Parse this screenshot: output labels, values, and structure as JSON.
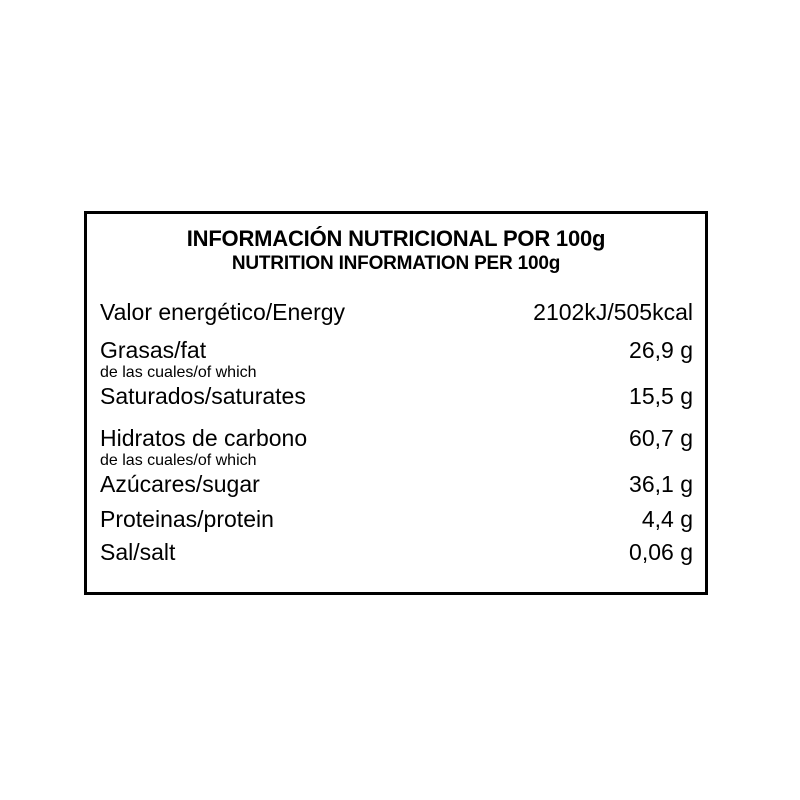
{
  "label": {
    "title_es": "INFORMACIÓN NUTRICIONAL POR 100g",
    "title_en": "NUTRITION INFORMATION PER 100g",
    "border_color": "#000000",
    "text_color": "#000000",
    "background_color": "#ffffff",
    "rows": [
      {
        "label": "Valor energético/Energy",
        "value": "2102kJ/505kcal"
      },
      {
        "label": "Grasas/fat",
        "value": "26,9 g"
      },
      {
        "note": "de las cuales/of which"
      },
      {
        "label": "Saturados/saturates",
        "value": "15,5 g"
      },
      {
        "label": "Hidratos de carbono",
        "value": "60,7 g"
      },
      {
        "note": "de las cuales/of which"
      },
      {
        "label": "Azúcares/sugar",
        "value": "36,1 g"
      },
      {
        "label": "Proteinas/protein",
        "value": "4,4 g"
      },
      {
        "label": "Sal/salt",
        "value": "0,06 g"
      }
    ]
  }
}
